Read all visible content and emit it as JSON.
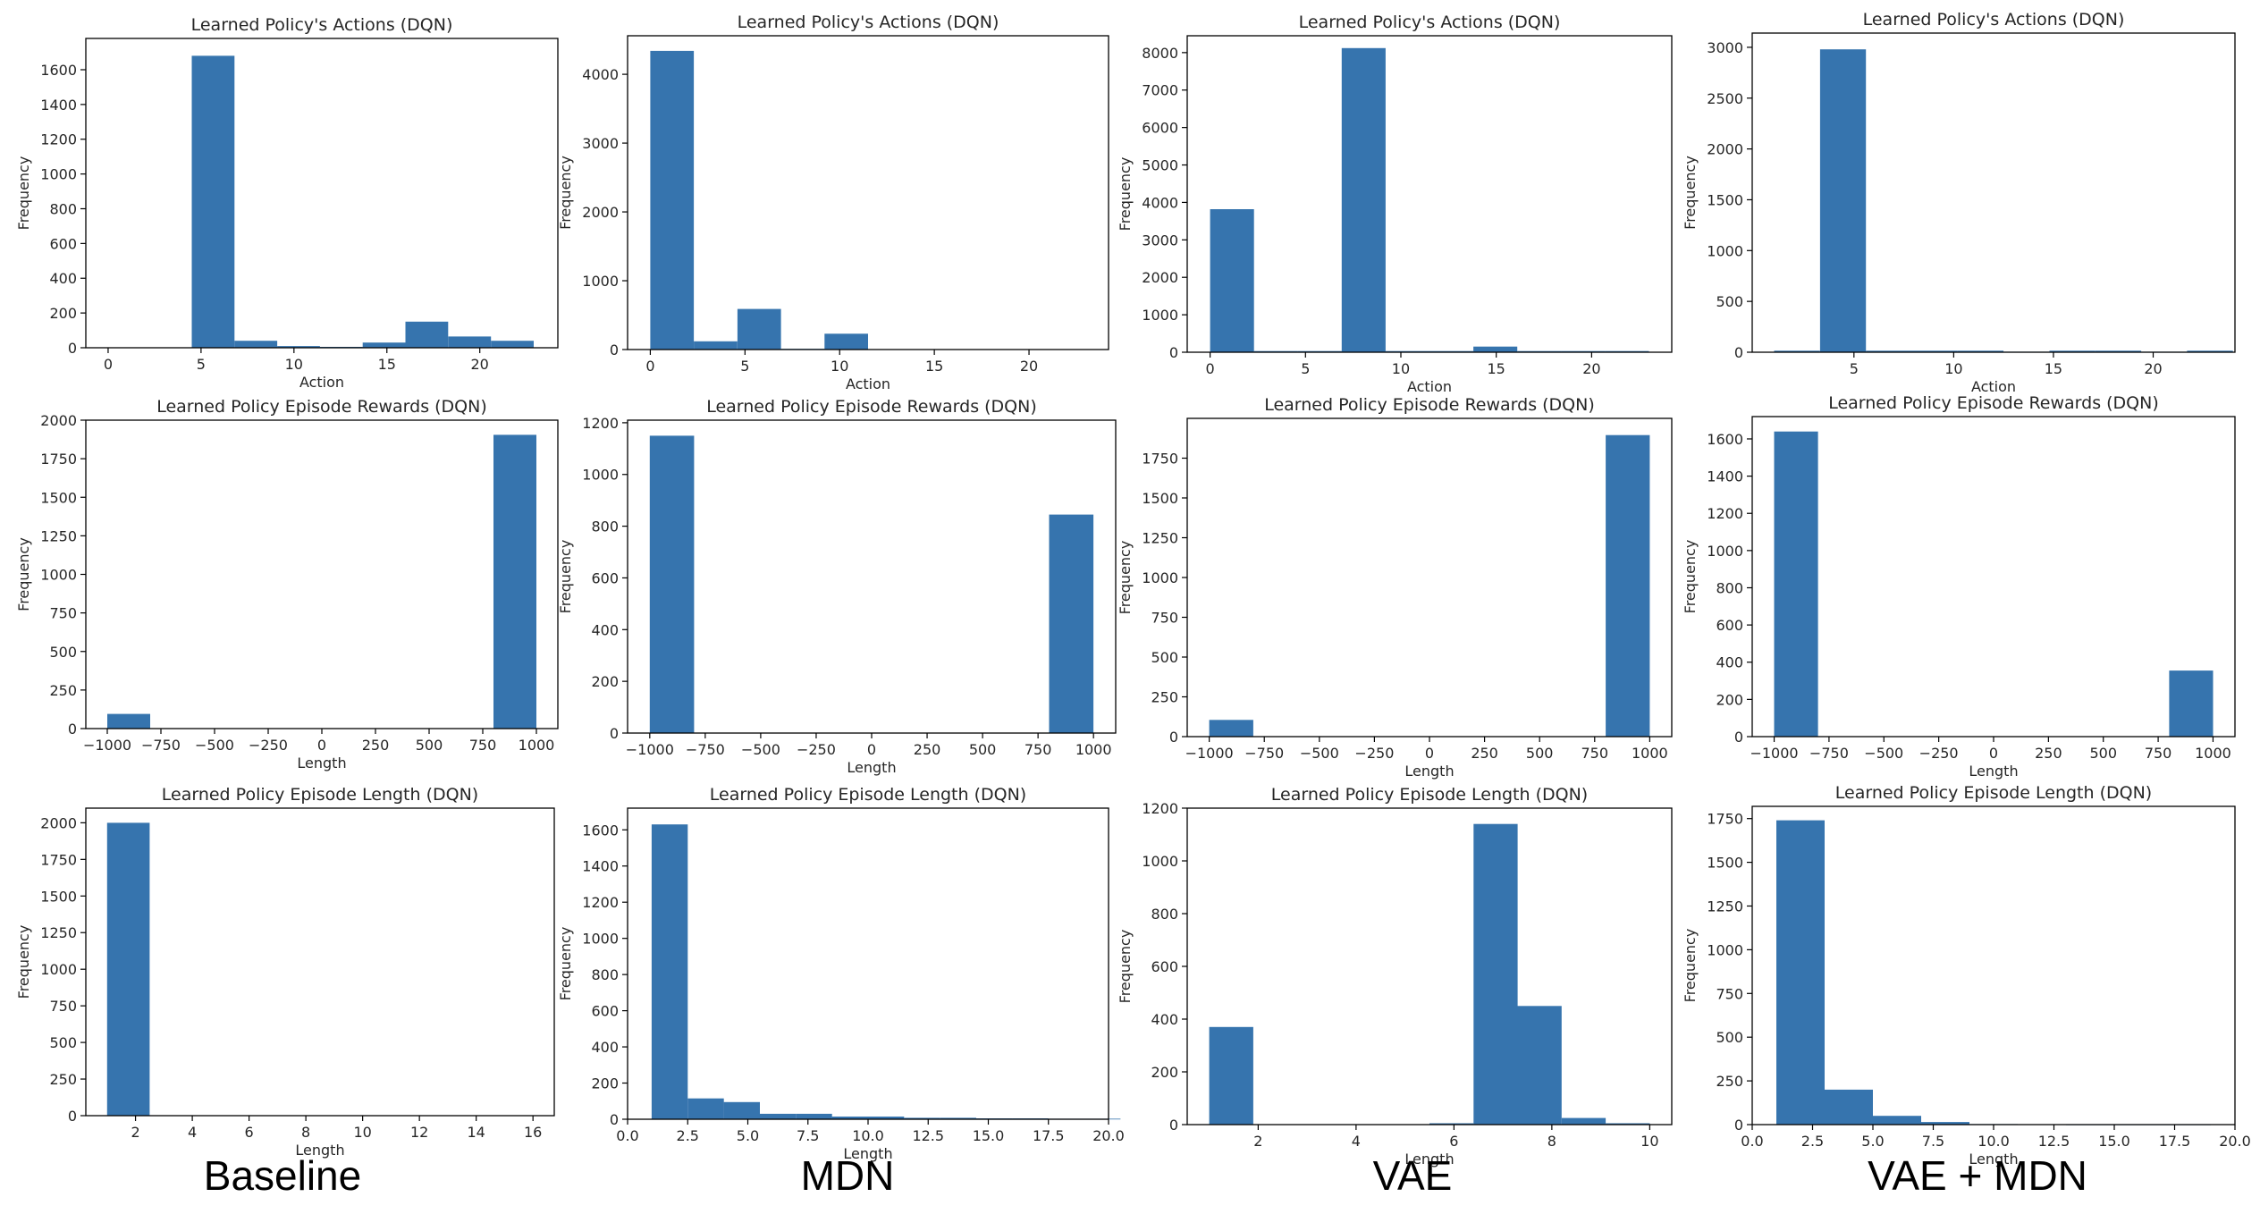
{
  "column_labels": [
    "Baseline",
    "MDN",
    "VAE",
    "VAE + MDN"
  ],
  "colors": {
    "bar": "#3674ae",
    "axis": "#000000",
    "text": "#262626"
  },
  "chart_data": [
    {
      "type": "bar",
      "method": "Baseline",
      "title": "Learned Policy's Actions (DQN)",
      "xlabel": "Action",
      "ylabel": "Frequency",
      "xlim": [
        -1.2,
        24.2
      ],
      "ylim": [
        0,
        1780
      ],
      "xticks": [
        0,
        5,
        10,
        15,
        20
      ],
      "yticks": [
        0,
        200,
        400,
        600,
        800,
        1000,
        1200,
        1400,
        1600
      ],
      "bin_edges": [
        4.5,
        6.8,
        9.1,
        11.4,
        13.7,
        16.0,
        18.3,
        20.6,
        22.9
      ],
      "counts": [
        1680,
        40,
        10,
        5,
        30,
        150,
        65,
        40
      ]
    },
    {
      "type": "bar",
      "method": "Baseline",
      "title": "Learned Policy Episode Rewards (DQN)",
      "xlabel": "Length",
      "ylabel": "Frequency",
      "xlim": [
        -1100,
        1100
      ],
      "ylim": [
        0,
        2000
      ],
      "xticks": [
        -1000,
        -750,
        -500,
        -250,
        0,
        250,
        500,
        750,
        1000
      ],
      "yticks": [
        0,
        250,
        500,
        750,
        1000,
        1250,
        1500,
        1750,
        2000
      ],
      "bin_edges": [
        -1000,
        -800,
        -600,
        -400,
        -200,
        0,
        200,
        400,
        600,
        800,
        1000
      ],
      "counts": [
        95,
        0,
        0,
        0,
        0,
        0,
        0,
        0,
        0,
        1905
      ]
    },
    {
      "type": "bar",
      "method": "Baseline",
      "title": "Learned Policy Episode Length (DQN)",
      "xlabel": "Length",
      "ylabel": "Frequency",
      "xlim": [
        0.25,
        16.75
      ],
      "ylim": [
        0,
        2100
      ],
      "xticks": [
        2,
        4,
        6,
        8,
        10,
        12,
        14,
        16
      ],
      "yticks": [
        0,
        250,
        500,
        750,
        1000,
        1250,
        1500,
        1750,
        2000
      ],
      "bin_edges": [
        1,
        2.5,
        4,
        5.5,
        7,
        8.5,
        10,
        11.5,
        13,
        14.5,
        16
      ],
      "counts": [
        2000,
        0,
        0,
        0,
        0,
        0,
        0,
        0,
        0,
        0
      ]
    },
    {
      "type": "bar",
      "method": "MDN",
      "title": "Learned Policy's Actions (DQN)",
      "xlabel": "Action",
      "ylabel": "Frequency",
      "xlim": [
        -1.2,
        24.2
      ],
      "ylim": [
        0,
        4560
      ],
      "xticks": [
        0,
        5,
        10,
        15,
        20
      ],
      "yticks": [
        0,
        1000,
        2000,
        3000,
        4000
      ],
      "bin_edges": [
        0,
        2.3,
        4.6,
        6.9,
        9.2,
        11.5,
        13.8,
        16.1,
        18.4,
        20.7,
        23.0
      ],
      "counts": [
        4340,
        120,
        590,
        10,
        230,
        5,
        5,
        5,
        5,
        5
      ]
    },
    {
      "type": "bar",
      "method": "MDN",
      "title": "Learned Policy Episode Rewards (DQN)",
      "xlabel": "Length",
      "ylabel": "Frequency",
      "xlim": [
        -1100,
        1100
      ],
      "ylim": [
        0,
        1210
      ],
      "xticks": [
        -1000,
        -750,
        -500,
        -250,
        0,
        250,
        500,
        750,
        1000
      ],
      "yticks": [
        0,
        200,
        400,
        600,
        800,
        1000,
        1200
      ],
      "bin_edges": [
        -1000,
        -800,
        -600,
        -400,
        -200,
        0,
        200,
        400,
        600,
        800,
        1000
      ],
      "counts": [
        1150,
        0,
        0,
        0,
        0,
        0,
        0,
        0,
        0,
        845
      ]
    },
    {
      "type": "bar",
      "method": "MDN",
      "title": "Learned Policy Episode Length (DQN)",
      "xlabel": "Length",
      "ylabel": "Frequency",
      "xlim": [
        0,
        20
      ],
      "ylim": [
        0,
        1720
      ],
      "xticks": [
        "0.0",
        "2.5",
        "5.0",
        "7.5",
        "10.0",
        "12.5",
        "15.0",
        "17.5",
        "20.0"
      ],
      "yticks": [
        0,
        200,
        400,
        600,
        800,
        1000,
        1200,
        1400,
        1600
      ],
      "bin_edges": [
        1,
        2.5,
        4,
        5.5,
        7,
        8.5,
        10,
        11.5,
        13,
        14.5,
        16,
        17.5,
        19,
        20.5
      ],
      "counts": [
        1630,
        115,
        95,
        30,
        30,
        15,
        15,
        8,
        8,
        5,
        5,
        3,
        3
      ]
    },
    {
      "type": "bar",
      "method": "VAE",
      "title": "Learned Policy's Actions (DQN)",
      "xlabel": "Action",
      "ylabel": "Frequency",
      "xlim": [
        -1.2,
        24.2
      ],
      "ylim": [
        0,
        8450
      ],
      "xticks": [
        0,
        5,
        10,
        15,
        20
      ],
      "yticks": [
        0,
        1000,
        2000,
        3000,
        4000,
        5000,
        6000,
        7000,
        8000
      ],
      "bin_edges": [
        0,
        2.3,
        4.6,
        6.9,
        9.2,
        11.5,
        13.8,
        16.1,
        18.4,
        20.7,
        23.0
      ],
      "counts": [
        3820,
        30,
        30,
        8120,
        30,
        30,
        150,
        30,
        30,
        30
      ]
    },
    {
      "type": "bar",
      "method": "VAE",
      "title": "Learned Policy Episode Rewards (DQN)",
      "xlabel": "Length",
      "ylabel": "Frequency",
      "xlim": [
        -1100,
        1100
      ],
      "ylim": [
        0,
        2000
      ],
      "xticks": [
        -1000,
        -750,
        -500,
        -250,
        0,
        250,
        500,
        750,
        1000
      ],
      "yticks": [
        0,
        250,
        500,
        750,
        1000,
        1250,
        1500,
        1750
      ],
      "bin_edges": [
        -1000,
        -800,
        -600,
        -400,
        -200,
        0,
        200,
        400,
        600,
        800,
        1000
      ],
      "counts": [
        105,
        0,
        0,
        0,
        0,
        0,
        0,
        0,
        0,
        1895
      ]
    },
    {
      "type": "bar",
      "method": "VAE",
      "title": "Learned Policy Episode Length (DQN)",
      "xlabel": "Length",
      "ylabel": "Frequency",
      "xlim": [
        0.55,
        10.45
      ],
      "ylim": [
        0,
        1200
      ],
      "xticks": [
        2,
        4,
        6,
        8,
        10
      ],
      "yticks": [
        0,
        200,
        400,
        600,
        800,
        1000,
        1200
      ],
      "bin_edges": [
        1,
        1.9,
        2.8,
        3.7,
        4.6,
        5.5,
        6.4,
        7.3,
        8.2,
        9.1,
        10
      ],
      "counts": [
        370,
        0,
        0,
        0,
        0,
        5,
        1140,
        450,
        25,
        5
      ]
    },
    {
      "type": "bar",
      "method": "VAE + MDN",
      "title": "Learned Policy's Actions (DQN)",
      "xlabel": "Action",
      "ylabel": "Frequency",
      "xlim": [
        -0.1,
        24.1
      ],
      "ylim": [
        0,
        3140
      ],
      "xticks": [
        5,
        10,
        15,
        20
      ],
      "yticks": [
        0,
        500,
        1000,
        1500,
        2000,
        2500,
        3000
      ],
      "bin_edges": [
        1,
        3.3,
        5.6,
        7.9,
        10.2,
        12.5,
        14.8,
        17.1,
        19.4,
        21.7,
        24.0
      ],
      "counts": [
        15,
        2980,
        15,
        15,
        15,
        5,
        15,
        15,
        5,
        15
      ]
    },
    {
      "type": "bar",
      "method": "VAE + MDN",
      "title": "Learned Policy Episode Rewards (DQN)",
      "xlabel": "Length",
      "ylabel": "Frequency",
      "xlim": [
        -1100,
        1100
      ],
      "ylim": [
        0,
        1720
      ],
      "xticks": [
        -1000,
        -750,
        -500,
        -250,
        0,
        250,
        500,
        750,
        1000
      ],
      "yticks": [
        0,
        200,
        400,
        600,
        800,
        1000,
        1200,
        1400,
        1600
      ],
      "bin_edges": [
        -1000,
        -800,
        -600,
        -400,
        -200,
        0,
        200,
        400,
        600,
        800,
        1000
      ],
      "counts": [
        1640,
        0,
        0,
        0,
        0,
        0,
        0,
        0,
        0,
        355
      ]
    },
    {
      "type": "bar",
      "method": "VAE + MDN",
      "title": "Learned Policy Episode Length (DQN)",
      "xlabel": "Length",
      "ylabel": "Frequency",
      "xlim": [
        0,
        20
      ],
      "ylim": [
        0,
        1820
      ],
      "xticks": [
        "0.0",
        "2.5",
        "5.0",
        "7.5",
        "10.0",
        "12.5",
        "15.0",
        "17.5",
        "20.0"
      ],
      "yticks": [
        0,
        250,
        500,
        750,
        1000,
        1250,
        1500,
        1750
      ],
      "bin_edges": [
        1,
        3,
        5,
        7,
        9,
        11,
        13,
        15,
        17,
        19
      ],
      "counts": [
        1740,
        200,
        50,
        15,
        3,
        2,
        1,
        1,
        1
      ]
    }
  ]
}
